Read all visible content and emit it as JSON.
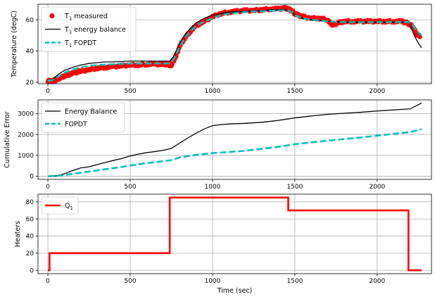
{
  "chart_data": [
    {
      "type": "line",
      "xlabel": "",
      "ylabel": "Temperature (degC)",
      "xlim": [
        -60,
        2330
      ],
      "ylim": [
        19,
        70
      ],
      "xticks": [
        0,
        500,
        1000,
        1500,
        2000
      ],
      "yticks": [
        20,
        40,
        60
      ],
      "grid": true,
      "legend": "top-left",
      "series": [
        {
          "name": "T1 measured",
          "name_base": "T",
          "name_sub": "1",
          "name_rest": " measured",
          "style": "points",
          "color": "#ff0000",
          "x": [
            0,
            20,
            40,
            60,
            80,
            100,
            130,
            160,
            200,
            250,
            300,
            350,
            400,
            450,
            500,
            550,
            600,
            650,
            700,
            730,
            740,
            750,
            760,
            780,
            800,
            830,
            860,
            900,
            950,
            1000,
            1050,
            1100,
            1150,
            1200,
            1250,
            1300,
            1350,
            1400,
            1440,
            1460,
            1480,
            1500,
            1520,
            1550,
            1600,
            1650,
            1700,
            1720,
            1740,
            1760,
            1800,
            1850,
            1900,
            1950,
            2000,
            2050,
            2100,
            2150,
            2180,
            2200,
            2220,
            2240,
            2260
          ],
          "y": [
            21,
            20.5,
            21,
            22,
            23,
            24,
            25,
            26,
            27,
            28,
            29,
            29.5,
            30,
            30.5,
            31,
            31,
            31.5,
            31.5,
            31.5,
            31.5,
            31,
            31,
            33,
            37,
            43,
            48,
            52,
            56,
            59,
            62,
            64,
            65,
            65.5,
            66,
            66,
            66.5,
            67,
            67,
            67.5,
            67,
            66,
            64,
            63,
            62,
            61,
            61,
            60,
            57,
            57,
            58,
            59,
            59,
            59,
            59,
            59,
            59,
            59,
            59,
            58,
            57,
            55,
            51,
            49
          ]
        },
        {
          "name": "T1 energy balance",
          "name_base": "T",
          "name_sub": "1",
          "name_rest": " energy balance",
          "style": "solid",
          "color": "#000000",
          "x": [
            0,
            20,
            40,
            70,
            100,
            150,
            200,
            250,
            300,
            350,
            400,
            500,
            600,
            700,
            740,
            760,
            780,
            800,
            830,
            860,
            900,
            950,
            1000,
            1050,
            1100,
            1200,
            1300,
            1400,
            1440,
            1460,
            1480,
            1500,
            1550,
            1600,
            1700,
            1800,
            1900,
            2000,
            2100,
            2150,
            2190,
            2200,
            2210,
            2230,
            2250,
            2270
          ],
          "y": [
            21,
            21.5,
            23,
            25.5,
            27.5,
            29.5,
            31,
            32,
            32.5,
            33,
            33,
            33.5,
            33.5,
            33.5,
            33.5,
            36,
            40,
            45,
            50,
            54,
            58,
            61,
            63,
            64,
            65,
            65.5,
            66,
            66.5,
            66.5,
            66,
            65,
            63,
            61,
            60,
            59,
            58.5,
            58.5,
            58.5,
            58.5,
            58.5,
            58.5,
            57,
            54,
            49,
            45,
            42
          ]
        },
        {
          "name": "T1 FOPDT",
          "name_base": "T",
          "name_sub": "1",
          "name_rest": " FOPDT",
          "style": "dashed",
          "color": "#00bfbf",
          "x": [
            0,
            20,
            40,
            70,
            100,
            150,
            200,
            250,
            300,
            400,
            500,
            600,
            700,
            740,
            760,
            780,
            800,
            830,
            860,
            900,
            950,
            1000,
            1050,
            1100,
            1200,
            1300,
            1400,
            1440,
            1460,
            1480,
            1500,
            1550,
            1600,
            1700,
            1800,
            1900,
            2000,
            2100,
            2150,
            2190,
            2200,
            2220,
            2240,
            2260,
            2270
          ],
          "y": [
            21,
            21,
            22,
            24,
            26,
            28,
            29.5,
            30.5,
            31,
            31.5,
            32,
            32,
            32,
            32,
            34,
            38,
            43,
            48,
            52,
            56,
            59,
            61,
            63,
            64,
            65,
            65.5,
            66,
            66,
            66,
            65,
            63,
            61,
            60,
            59,
            58.5,
            58.5,
            58.5,
            58.5,
            58.5,
            58.5,
            58,
            56,
            53,
            51,
            50
          ]
        }
      ]
    },
    {
      "type": "line",
      "xlabel": "",
      "ylabel": "Cumulative Error",
      "xlim": [
        -60,
        2330
      ],
      "ylim": [
        -150,
        3650
      ],
      "xticks": [
        0,
        500,
        1000,
        1500,
        2000
      ],
      "yticks": [
        0,
        1000,
        2000,
        3000
      ],
      "grid": true,
      "legend": "top-left",
      "series": [
        {
          "name": "Energy Balance",
          "style": "solid",
          "color": "#000000",
          "x": [
            0,
            50,
            100,
            150,
            200,
            250,
            300,
            350,
            400,
            450,
            500,
            550,
            600,
            650,
            700,
            750,
            800,
            850,
            900,
            950,
            1000,
            1050,
            1100,
            1200,
            1300,
            1400,
            1500,
            1600,
            1700,
            1800,
            1900,
            2000,
            2100,
            2200,
            2270
          ],
          "y": [
            0,
            20,
            120,
            270,
            400,
            450,
            560,
            660,
            760,
            850,
            970,
            1060,
            1130,
            1180,
            1240,
            1330,
            1590,
            1830,
            2060,
            2260,
            2420,
            2470,
            2500,
            2530,
            2580,
            2670,
            2790,
            2880,
            2960,
            3010,
            3060,
            3120,
            3170,
            3220,
            3500
          ]
        },
        {
          "name": "FOPDT",
          "style": "dashed",
          "color": "#00bfbf",
          "x": [
            0,
            50,
            100,
            200,
            300,
            400,
            500,
            600,
            700,
            750,
            800,
            900,
            1000,
            1100,
            1200,
            1300,
            1400,
            1500,
            1600,
            1700,
            1800,
            1900,
            2000,
            2100,
            2200,
            2270
          ],
          "y": [
            0,
            20,
            60,
            170,
            280,
            390,
            510,
            630,
            720,
            770,
            900,
            1020,
            1110,
            1160,
            1220,
            1310,
            1410,
            1530,
            1620,
            1700,
            1780,
            1850,
            1940,
            2030,
            2110,
            2250
          ]
        }
      ]
    },
    {
      "type": "line",
      "xlabel": "Time (sec)",
      "ylabel": "Heaters",
      "xlim": [
        -60,
        2330
      ],
      "ylim": [
        -4,
        89
      ],
      "xticks": [
        0,
        500,
        1000,
        1500,
        2000
      ],
      "yticks": [
        0,
        20,
        40,
        60,
        80
      ],
      "grid": true,
      "legend": "top-left",
      "series": [
        {
          "name": "Q1",
          "name_base": "Q",
          "name_sub": "1",
          "name_rest": "",
          "style": "solid",
          "color": "#ff0000",
          "x": [
            0,
            10,
            10,
            740,
            740,
            1460,
            1460,
            2190,
            2190,
            2270
          ],
          "y": [
            0,
            0,
            20,
            20,
            85,
            85,
            70,
            70,
            0,
            0
          ]
        }
      ]
    }
  ]
}
